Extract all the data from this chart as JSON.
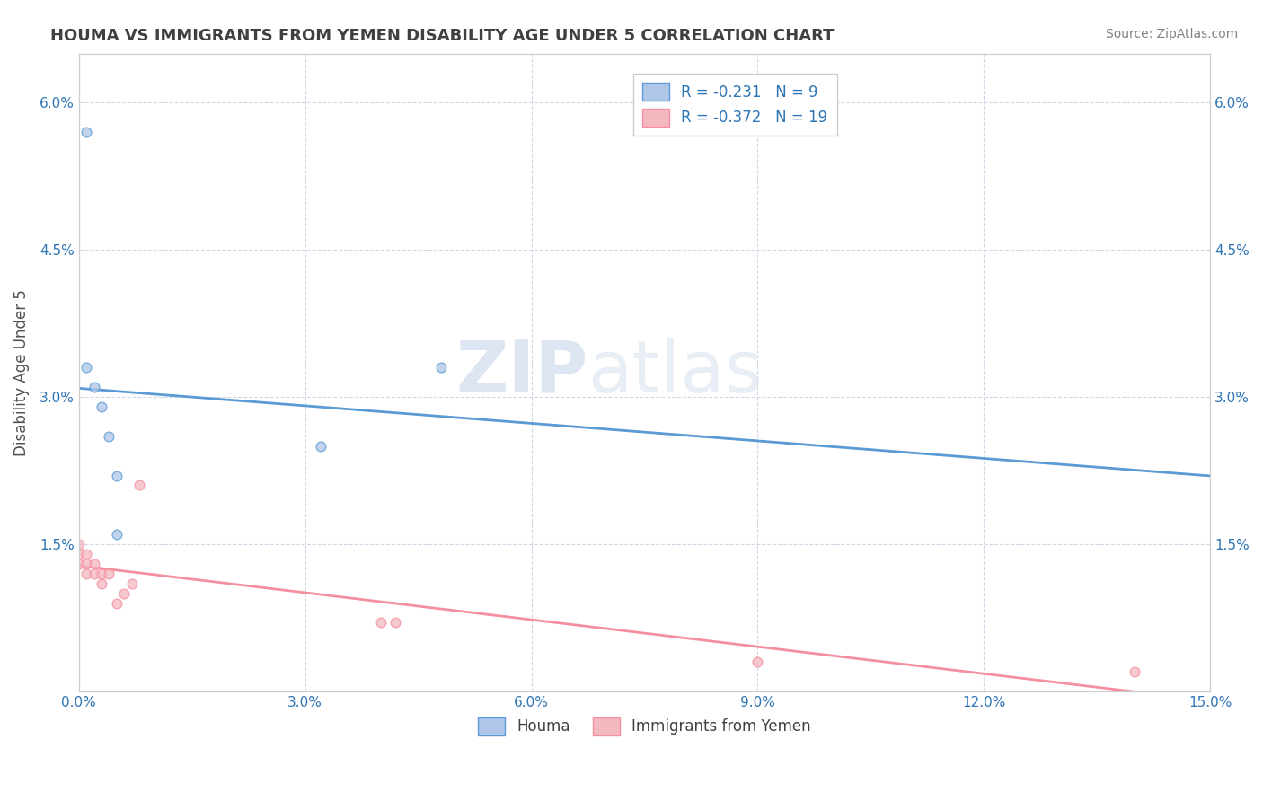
{
  "title": "HOUMA VS IMMIGRANTS FROM YEMEN DISABILITY AGE UNDER 5 CORRELATION CHART",
  "source": "Source: ZipAtlas.com",
  "ylabel": "Disability Age Under 5",
  "watermark_zip": "ZIP",
  "watermark_atlas": "atlas",
  "houma_x": [
    0.001,
    0.001,
    0.002,
    0.003,
    0.004,
    0.005,
    0.005,
    0.032,
    0.048
  ],
  "houma_y": [
    0.057,
    0.033,
    0.031,
    0.029,
    0.026,
    0.022,
    0.016,
    0.025,
    0.033
  ],
  "yemen_x": [
    0.0,
    0.0,
    0.0,
    0.001,
    0.001,
    0.001,
    0.002,
    0.002,
    0.003,
    0.003,
    0.004,
    0.005,
    0.006,
    0.007,
    0.008,
    0.04,
    0.042,
    0.09,
    0.14
  ],
  "yemen_y": [
    0.015,
    0.014,
    0.013,
    0.014,
    0.013,
    0.012,
    0.013,
    0.012,
    0.012,
    0.011,
    0.012,
    0.009,
    0.01,
    0.011,
    0.021,
    0.007,
    0.007,
    0.003,
    0.002
  ],
  "houma_color": "#aec6e8",
  "yemen_color": "#f4b8c1",
  "houma_line_color": "#5b9bd5",
  "yemen_line_color": "#f48fa0",
  "regression_line_color": "#a0a0a0",
  "houma_R": -0.231,
  "houma_N": 9,
  "yemen_R": -0.372,
  "yemen_N": 19,
  "xlim": [
    0.0,
    0.15
  ],
  "ylim": [
    0.0,
    0.065
  ],
  "xticks": [
    0.0,
    0.03,
    0.06,
    0.09,
    0.12,
    0.15
  ],
  "xtick_labels": [
    "0.0%",
    "3.0%",
    "6.0%",
    "9.0%",
    "12.0%",
    "15.0%"
  ],
  "yticks": [
    0.0,
    0.015,
    0.03,
    0.045,
    0.06
  ],
  "ytick_labels": [
    "",
    "1.5%",
    "3.0%",
    "4.5%",
    "6.0%"
  ],
  "background_color": "#ffffff",
  "plot_bg_color": "#ffffff",
  "grid_color": "#d0d8e8",
  "title_color": "#404040",
  "tick_color": "#2e75b6",
  "legend_text_color": "#2e75b6",
  "marker_size": 60,
  "alpha": 0.75
}
